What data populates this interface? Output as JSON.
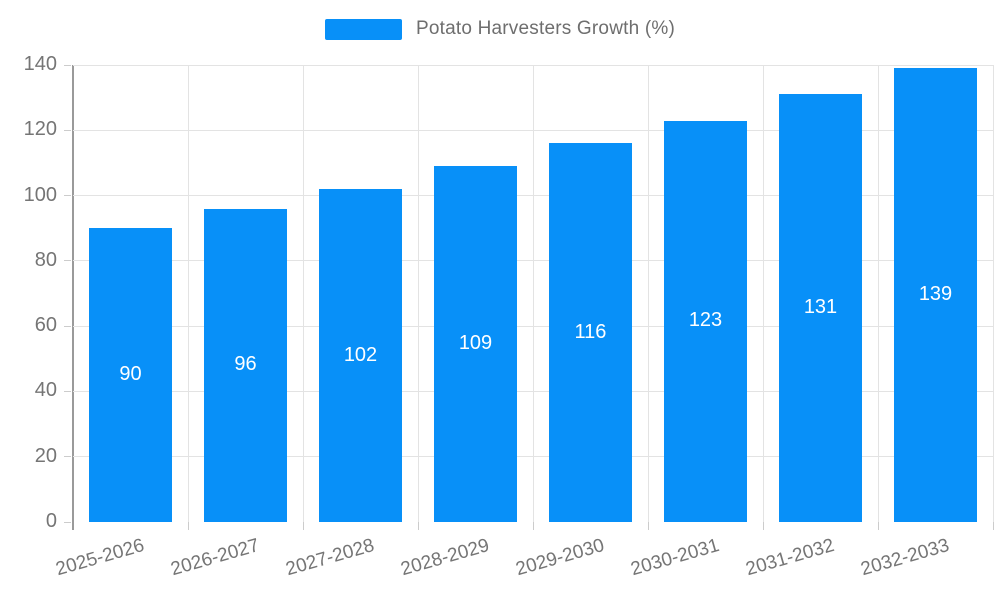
{
  "chart_data": {
    "type": "bar",
    "title": "Potato Harvesters Growth (%)",
    "legend": [
      "Potato Harvesters Growth (%)"
    ],
    "legend_position": "top-center",
    "categories": [
      "2025-2026",
      "2026-2027",
      "2027-2028",
      "2028-2029",
      "2029-2030",
      "2030-2031",
      "2031-2032",
      "2032-2033"
    ],
    "series": [
      {
        "name": "Potato Harvesters Growth (%)",
        "values": [
          90,
          96,
          102,
          109,
          116,
          123,
          131,
          139
        ]
      }
    ],
    "value_labels_shown": true,
    "xlabel": "",
    "ylabel": "",
    "ylim": [
      0,
      140
    ],
    "ytick_step": 20,
    "yticks": [
      0,
      20,
      40,
      60,
      80,
      100,
      120,
      140
    ],
    "grid": true,
    "x_label_rotation_deg": -16
  },
  "colors": {
    "bar": "#0890f8",
    "value_label": "#ffffff",
    "axis_text": "#757575",
    "legend_text": "#6e6e6e",
    "gridline": "#e3e3e3",
    "axis_line": "#9a9a9a",
    "tick": "#cccccc",
    "background": "#ffffff"
  }
}
